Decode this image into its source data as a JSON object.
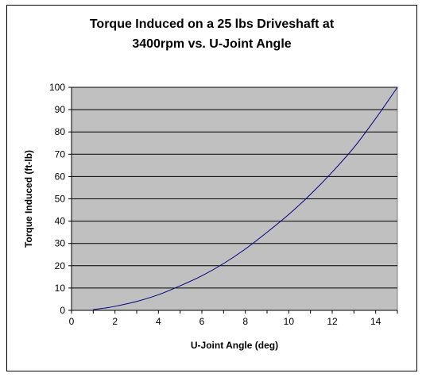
{
  "chart_data": {
    "type": "line",
    "title_line1": "Torque Induced on a 25 lbs Driveshaft at",
    "title_line2": "3400rpm vs. U-Joint Angle",
    "xlabel": "U-Joint Angle (deg)",
    "ylabel": "Torque Induced (ft-lb)",
    "xlim": [
      0,
      15
    ],
    "ylim": [
      0,
      100
    ],
    "xticks": [
      0,
      2,
      4,
      6,
      8,
      10,
      12,
      14
    ],
    "yticks": [
      0,
      10,
      20,
      30,
      40,
      50,
      60,
      70,
      80,
      90,
      100
    ],
    "grid": "horizontal",
    "plot_background": "#c0c0c0",
    "series": [
      {
        "color": "#000080",
        "x": [
          1,
          1.5,
          2,
          3,
          4,
          5,
          6,
          7,
          8,
          9,
          10,
          11,
          12,
          13,
          14,
          15
        ],
        "y": [
          0.4,
          1,
          1.8,
          4,
          7,
          11,
          15.5,
          21,
          27.5,
          35,
          43,
          52,
          62,
          73,
          86,
          100
        ]
      }
    ]
  }
}
